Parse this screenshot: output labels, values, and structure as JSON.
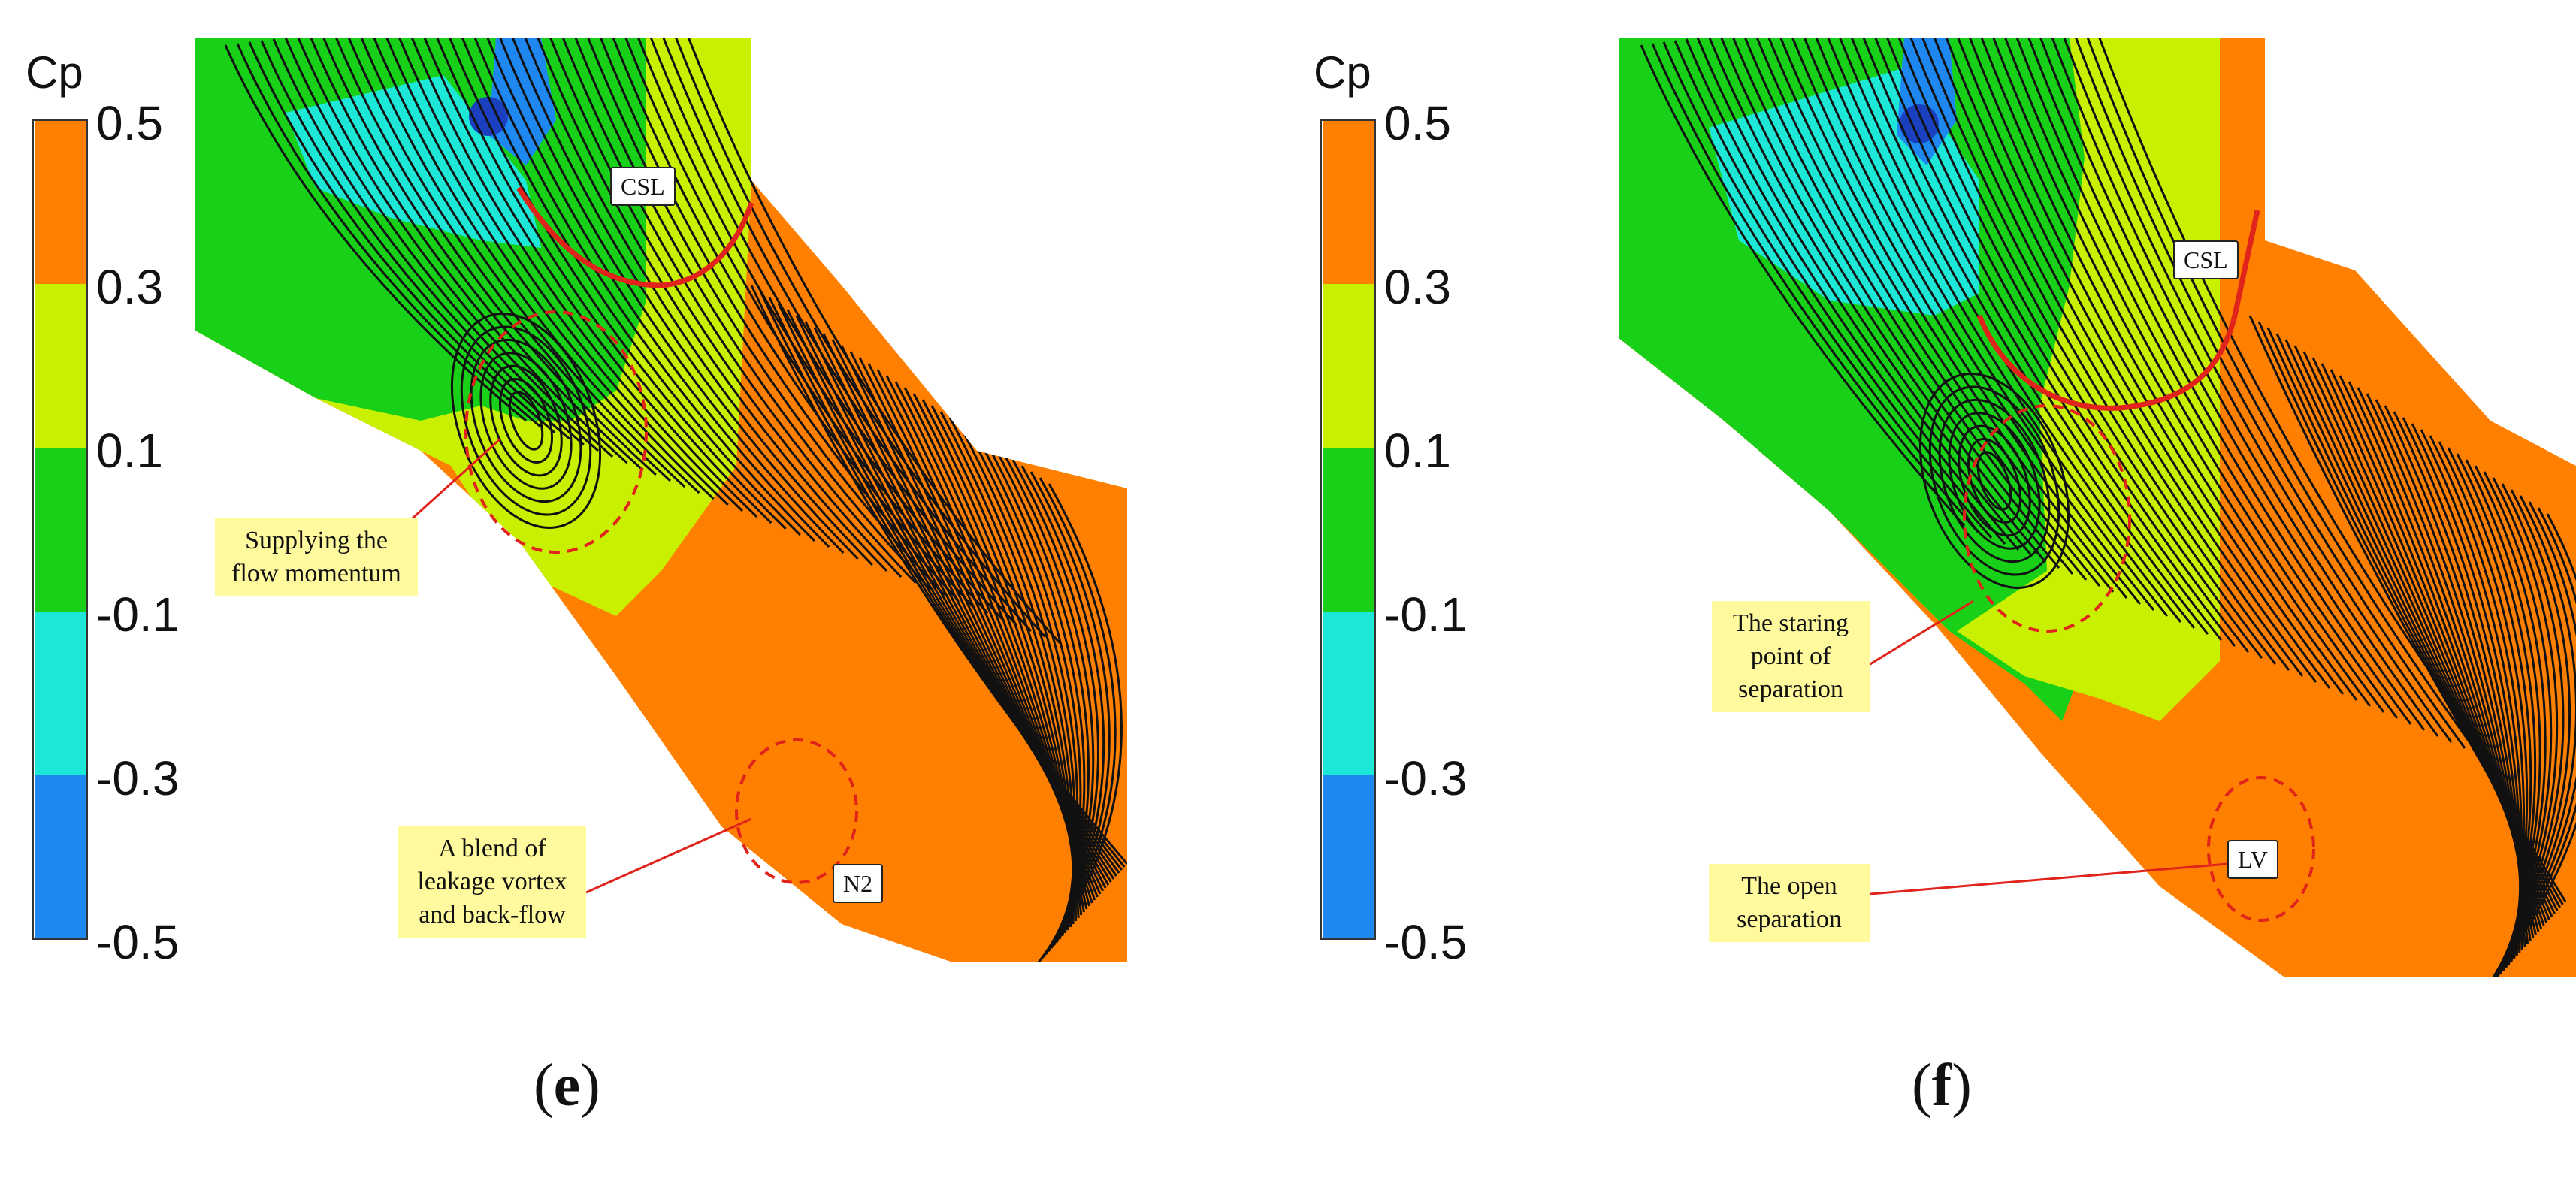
{
  "colorbar": {
    "title": "Cp",
    "ticks": [
      "0.5",
      "0.3",
      "0.1",
      "-0.1",
      "-0.3",
      "-0.5"
    ],
    "bands": [
      {
        "from": 0.3,
        "to": 0.5,
        "color": "#ff8000"
      },
      {
        "from": 0.1,
        "to": 0.3,
        "color": "#c8f000"
      },
      {
        "from": -0.1,
        "to": 0.1,
        "color": "#18d018"
      },
      {
        "from": -0.3,
        "to": -0.1,
        "color": "#1de8d8"
      },
      {
        "from": -0.5,
        "to": -0.3,
        "color": "#1e88f0"
      }
    ]
  },
  "colors": {
    "orange": "#ff8000",
    "yellow_green": "#c8f000",
    "green": "#18d018",
    "cyan": "#1de8d8",
    "blue": "#1e88f0",
    "streamline": "#111111",
    "separation_line": "#e0231b",
    "callout_bg": "#fffa9e"
  },
  "panels": [
    {
      "label_open": "(",
      "label": "e",
      "label_close": ")",
      "tags": [
        "CSL",
        "N2"
      ],
      "callouts": [
        [
          "Supplying the",
          "flow momentum"
        ],
        [
          "A blend of",
          "leakage vortex",
          "and back-flow"
        ]
      ]
    },
    {
      "label_open": "(",
      "label": "f",
      "label_close": ")",
      "tags": [
        "CSL",
        "LV"
      ],
      "callouts": [
        [
          "The staring",
          "point of",
          "separation"
        ],
        [
          "The open",
          "separation"
        ]
      ]
    }
  ]
}
